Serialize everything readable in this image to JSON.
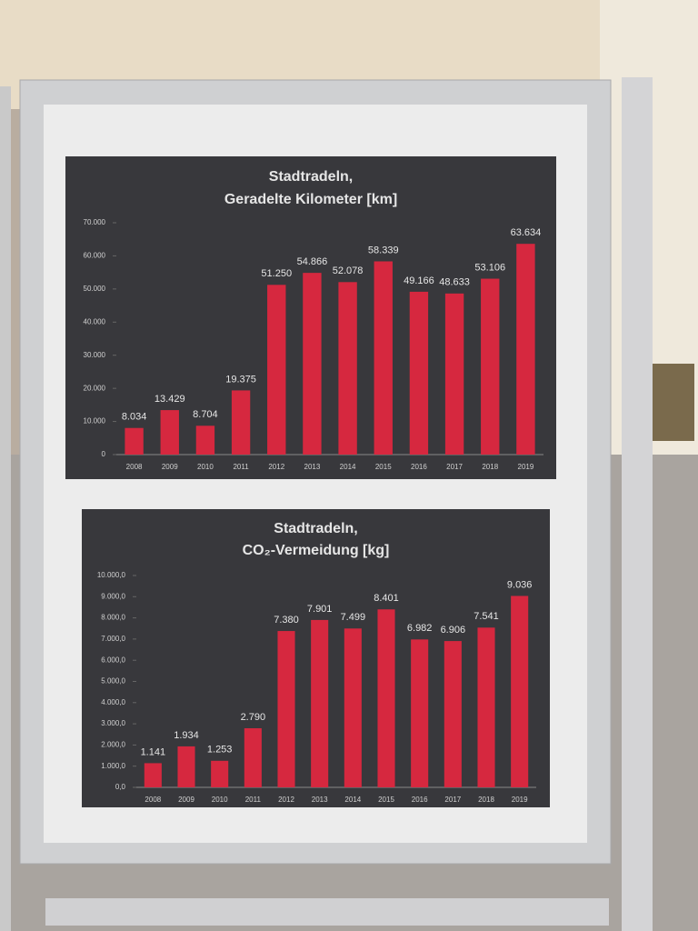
{
  "chart_data": [
    {
      "type": "bar",
      "title": [
        "Stadtradeln,",
        "Geradelte Kilometer [km]"
      ],
      "categories": [
        "2008",
        "2009",
        "2010",
        "2011",
        "2012",
        "2013",
        "2014",
        "2015",
        "2016",
        "2017",
        "2018",
        "2019"
      ],
      "values": [
        8034,
        13429,
        8704,
        19375,
        51250,
        54866,
        52078,
        58339,
        49166,
        48633,
        53106,
        63634
      ],
      "value_labels": [
        "8.034",
        "13.429",
        "8.704",
        "19.375",
        "51.250",
        "54.866",
        "52.078",
        "58.339",
        "49.166",
        "48.633",
        "53.106",
        "63.634"
      ],
      "color": "#d6283f",
      "ylim": [
        0,
        70000
      ],
      "yticks": [
        0,
        {
          "value": 10000,
          "label": "10.000"
        },
        {
          "value": 20000,
          "label": "20.000"
        },
        {
          "value": 30000,
          "label": "30.000"
        },
        {
          "value": 40000,
          "label": "40.000"
        },
        {
          "value": 50000,
          "label": "50.000"
        },
        {
          "value": 60000,
          "label": "60.000"
        },
        {
          "value": 70000,
          "label": "70.000"
        }
      ]
    },
    {
      "type": "bar",
      "title": [
        "Stadtradeln,",
        "CO₂-Vermeidung [kg]"
      ],
      "categories": [
        "2008",
        "2009",
        "2010",
        "2011",
        "2012",
        "2013",
        "2014",
        "2015",
        "2016",
        "2017",
        "2018",
        "2019"
      ],
      "values": [
        1141,
        1934,
        1253,
        2790,
        7380,
        7901,
        7499,
        8401,
        6982,
        6906,
        7541,
        9036
      ],
      "value_labels": [
        "1.141",
        "1.934",
        "1.253",
        "2.790",
        "7.380",
        "7.901",
        "7.499",
        "8.401",
        "6.982",
        "6.906",
        "7.541",
        "9.036"
      ],
      "color": "#d6283f",
      "ylim": [
        0,
        10000
      ],
      "yticks": [
        {
          "value": 0,
          "label": "0,0"
        },
        {
          "value": 1000,
          "label": "1.000,0"
        },
        {
          "value": 2000,
          "label": "2.000,0"
        },
        {
          "value": 3000,
          "label": "3.000,0"
        },
        {
          "value": 4000,
          "label": "4.000,0"
        },
        {
          "value": 5000,
          "label": "5.000,0"
        },
        {
          "value": 6000,
          "label": "6.000,0"
        },
        {
          "value": 7000,
          "label": "7.000,0"
        },
        {
          "value": 8000,
          "label": "8.000,0"
        },
        {
          "value": 9000,
          "label": "9.000,0"
        },
        {
          "value": 10000,
          "label": "10.000,0"
        }
      ]
    }
  ]
}
